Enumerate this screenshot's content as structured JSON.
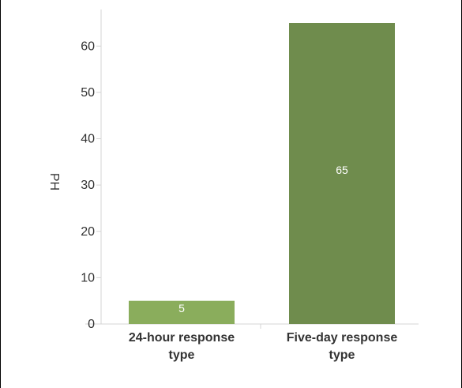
{
  "chart_data": {
    "type": "bar",
    "title": "",
    "xlabel": "",
    "ylabel": "PH",
    "categories": [
      "24-hour response type",
      "Five-day response type"
    ],
    "category_lines": [
      [
        "24-hour response",
        "type"
      ],
      [
        "Five-day response",
        "type"
      ]
    ],
    "values": [
      5,
      65
    ],
    "data_labels": [
      "5",
      "65"
    ],
    "bar_colors": [
      "#8aad5c",
      "#6f8c4d"
    ],
    "ylim": [
      0,
      70
    ],
    "yticks": [
      "0",
      "10",
      "20",
      "30",
      "40",
      "50",
      "60"
    ],
    "grid": false,
    "legend": "none"
  }
}
